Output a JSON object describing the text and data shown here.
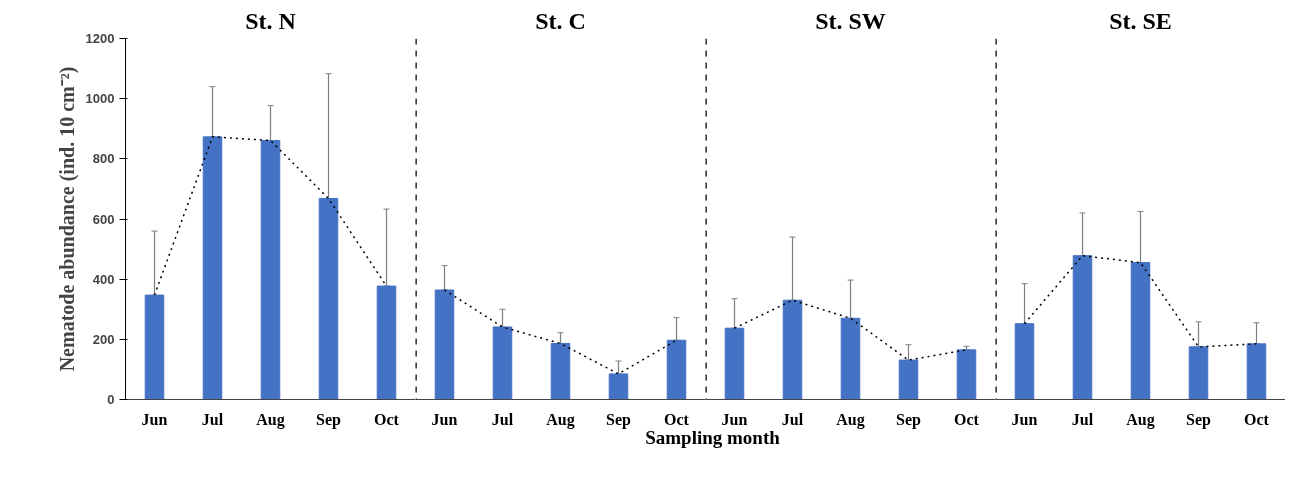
{
  "chart_data": [
    {
      "type": "bar",
      "title": "St. N",
      "ylabel": "Nematode abundance (ind. 10 cm⁻²)",
      "categories": [
        "Jun",
        "Jul",
        "Aug",
        "Sep",
        "Oct"
      ],
      "ylim": [
        0,
        1200
      ],
      "yticks": [
        0,
        200,
        400,
        600,
        800,
        1000,
        1200
      ],
      "grid": false,
      "series": [
        {
          "color": "#4472c4",
          "values": [
            347,
            873,
            861,
            668,
            377
          ],
          "errors": [
            [
              347,
              560
            ],
            [
              873,
              1040
            ],
            [
              861,
              977
            ],
            [
              668,
              1083
            ],
            [
              377,
              633
            ]
          ]
        },
        {
          "type": "line",
          "color": "#000000",
          "line_style": "dotted",
          "marker": "none",
          "values": [
            347,
            873,
            861,
            668,
            377
          ]
        }
      ]
    },
    {
      "type": "bar",
      "title": "St. C",
      "xlabel": "Sampling month",
      "categories": [
        "Jun",
        "Jul",
        "Aug",
        "Sep",
        "Oct"
      ],
      "ylim": [
        0,
        1200
      ],
      "yticks": [
        0,
        200,
        400,
        600,
        800,
        1000,
        1200
      ],
      "tick_labels": "x",
      "grid": false,
      "series": [
        {
          "color": "#4472c4",
          "values": [
            364,
            241,
            186,
            85,
            197
          ],
          "errors": [
            [
              364,
              445
            ],
            [
              241,
              300
            ],
            [
              186,
              222
            ],
            [
              85,
              128
            ],
            [
              197,
              272
            ]
          ]
        },
        {
          "type": "line",
          "color": "#000000",
          "line_style": "dotted",
          "marker": "none",
          "values": [
            364,
            241,
            186,
            85,
            197
          ]
        }
      ]
    },
    {
      "type": "bar",
      "title": "St. SW",
      "categories": [
        "Jun",
        "Jul",
        "Aug",
        "Sep",
        "Oct"
      ],
      "ylim": [
        0,
        1200
      ],
      "yticks": [
        0,
        200,
        400,
        600,
        800,
        1000,
        1200
      ],
      "tick_labels": "x",
      "grid": false,
      "series": [
        {
          "color": "#4472c4",
          "values": [
            237,
            330,
            270,
            131,
            165
          ],
          "errors": [
            [
              237,
              335
            ],
            [
              330,
              540
            ],
            [
              270,
              397
            ],
            [
              131,
              182
            ],
            [
              165,
              177
            ]
          ]
        },
        {
          "type": "line",
          "color": "#000000",
          "line_style": "dotted",
          "marker": "none",
          "values": [
            237,
            330,
            270,
            131,
            165
          ]
        }
      ]
    },
    {
      "type": "bar",
      "title": "St. SE",
      "categories": [
        "Jun",
        "Jul",
        "Aug",
        "Sep",
        "Oct"
      ],
      "ylim": [
        0,
        1200
      ],
      "yticks": [
        0,
        200,
        400,
        600,
        800,
        1000,
        1200
      ],
      "tick_labels": "x",
      "grid": false,
      "series": [
        {
          "color": "#4472c4",
          "values": [
            252,
            478,
            455,
            175,
            185
          ],
          "errors": [
            [
              252,
              385
            ],
            [
              478,
              620
            ],
            [
              455,
              625
            ],
            [
              175,
              258
            ],
            [
              185,
              255
            ]
          ]
        },
        {
          "type": "line",
          "color": "#000000",
          "line_style": "dotted",
          "marker": "none",
          "values": [
            252,
            478,
            455,
            175,
            185
          ]
        }
      ]
    }
  ]
}
